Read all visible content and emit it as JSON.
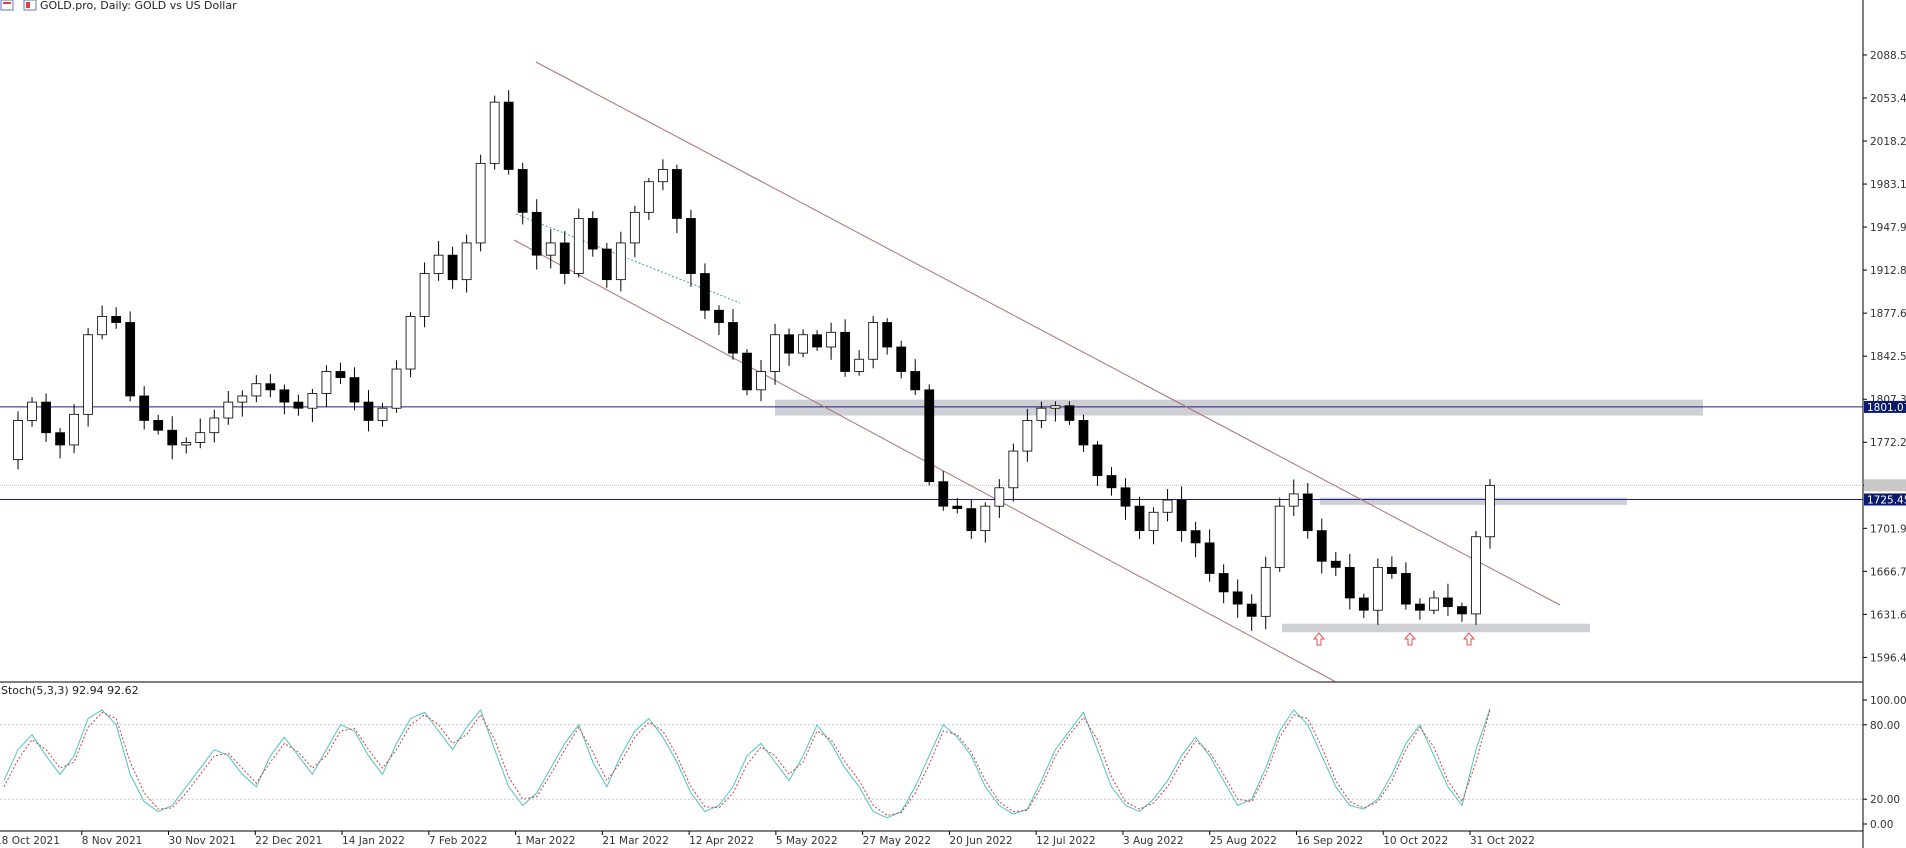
{
  "header": {
    "title": "GOLD.pro, Daily:  GOLD vs US Dollar",
    "indicator_label": "Stoch(5,3,3) 92.94 92.62"
  },
  "colors": {
    "background": "#ffffff",
    "candle_body_up": "#ffffff",
    "candle_body_down": "#000000",
    "candle_outline": "#000000",
    "channel_line": "#b07070",
    "horizontal_level": "#1c1c8c",
    "zone_fill": "#cfd0d6",
    "stoch_main": "#4fc3c3",
    "stoch_signal": "#d04040",
    "arrow": "#e05050",
    "price_tag_bg": "#0a1a6e",
    "current_tag_bg": "#c8c8c8"
  },
  "chart_data": [
    {
      "type": "candlestick",
      "symbol": "GOLD.pro",
      "timeframe": "Daily",
      "ylim": [
        1578,
        2122
      ],
      "y_ticks": [
        "2088.55",
        "2053.40",
        "2018.25",
        "1983.10",
        "1947.95",
        "1912.80",
        "1877.65",
        "1842.50",
        "1807.35",
        "1772.20",
        "1737.05",
        "1701.90",
        "1666.75",
        "1631.60",
        "1596.45"
      ],
      "x_tick_labels": [
        "18 Oct 2021",
        "8 Nov 2021",
        "30 Nov 2021",
        "22 Dec 2021",
        "14 Jan 2022",
        "7 Feb 2022",
        "1 Mar 2022",
        "21 Mar 2022",
        "12 Apr 2022",
        "5 May 2022",
        "27 May 2022",
        "20 Jun 2022",
        "12 Jul 2022",
        "3 Aug 2022",
        "25 Aug 2022",
        "16 Sep 2022",
        "10 Oct 2022",
        "31 Oct 2022"
      ],
      "price_tags": [
        "1801.07",
        "1725.45"
      ],
      "current_price": 1737.05,
      "price_path": [
        1758,
        1790,
        1805,
        1780,
        1770,
        1795,
        1860,
        1875,
        1870,
        1810,
        1790,
        1782,
        1770,
        1772,
        1780,
        1792,
        1805,
        1810,
        1820,
        1815,
        1805,
        1800,
        1812,
        1830,
        1825,
        1805,
        1790,
        1800,
        1832,
        1875,
        1910,
        1925,
        1905,
        1935,
        2000,
        2050,
        1995,
        1960,
        1925,
        1935,
        1910,
        1955,
        1930,
        1905,
        1935,
        1960,
        1985,
        1995,
        1955,
        1910,
        1880,
        1870,
        1845,
        1815,
        1830,
        1860,
        1845,
        1860,
        1850,
        1862,
        1830,
        1840,
        1870,
        1850,
        1830,
        1815,
        1740,
        1720,
        1718,
        1700,
        1720,
        1735,
        1765,
        1790,
        1800,
        1802,
        1790,
        1770,
        1745,
        1735,
        1720,
        1700,
        1715,
        1725,
        1700,
        1690,
        1665,
        1650,
        1640,
        1630,
        1670,
        1720,
        1730,
        1700,
        1675,
        1670,
        1645,
        1635,
        1670,
        1665,
        1640,
        1635,
        1645,
        1638,
        1632,
        1695,
        1737
      ],
      "levels": [
        1801.07,
        1725.45
      ],
      "zones": [
        {
          "name": "upper-resistance",
          "low": 1794,
          "high": 1807
        },
        {
          "name": "mid-zone",
          "low": 1721,
          "high": 1727
        },
        {
          "name": "support",
          "low": 1617,
          "high": 1624
        }
      ],
      "annotations": {
        "up_arrows": 3
      }
    },
    {
      "type": "line",
      "indicator": "Stochastic",
      "params": [
        5,
        3,
        3
      ],
      "ylim": [
        0,
        100
      ],
      "y_ticks": [
        "100.00",
        "80.00",
        "20.00",
        "0.00"
      ],
      "levels": [
        80,
        20
      ],
      "series": [
        {
          "name": "92.94",
          "values": [
            35,
            60,
            72,
            55,
            40,
            55,
            85,
            92,
            80,
            40,
            18,
            10,
            15,
            30,
            45,
            60,
            55,
            40,
            30,
            55,
            70,
            55,
            40,
            60,
            80,
            75,
            55,
            40,
            65,
            85,
            90,
            75,
            60,
            78,
            92,
            60,
            30,
            15,
            25,
            45,
            65,
            80,
            50,
            30,
            55,
            75,
            85,
            70,
            50,
            25,
            10,
            15,
            30,
            55,
            65,
            50,
            35,
            55,
            80,
            65,
            45,
            30,
            10,
            5,
            10,
            30,
            55,
            80,
            70,
            55,
            30,
            15,
            8,
            12,
            35,
            60,
            75,
            90,
            60,
            30,
            15,
            10,
            20,
            35,
            55,
            70,
            55,
            35,
            15,
            20,
            45,
            75,
            92,
            80,
            55,
            30,
            15,
            12,
            20,
            40,
            65,
            80,
            55,
            30,
            15,
            60,
            93
          ]
        },
        {
          "name": "92.62",
          "values": [
            30,
            52,
            68,
            60,
            45,
            50,
            78,
            90,
            85,
            50,
            25,
            12,
            13,
            25,
            40,
            55,
            57,
            45,
            33,
            50,
            65,
            58,
            45,
            55,
            75,
            77,
            60,
            45,
            60,
            80,
            88,
            80,
            65,
            72,
            88,
            68,
            38,
            20,
            22,
            40,
            60,
            78,
            58,
            35,
            50,
            70,
            82,
            75,
            55,
            30,
            14,
            13,
            25,
            48,
            62,
            55,
            40,
            50,
            75,
            68,
            50,
            35,
            15,
            7,
            9,
            25,
            48,
            75,
            72,
            58,
            35,
            18,
            10,
            11,
            30,
            55,
            72,
            86,
            68,
            38,
            18,
            12,
            17,
            30,
            50,
            67,
            58,
            40,
            20,
            18,
            40,
            70,
            88,
            85,
            62,
            35,
            18,
            13,
            18,
            35,
            60,
            78,
            62,
            35,
            18,
            50,
            92.6
          ]
        }
      ]
    }
  ]
}
